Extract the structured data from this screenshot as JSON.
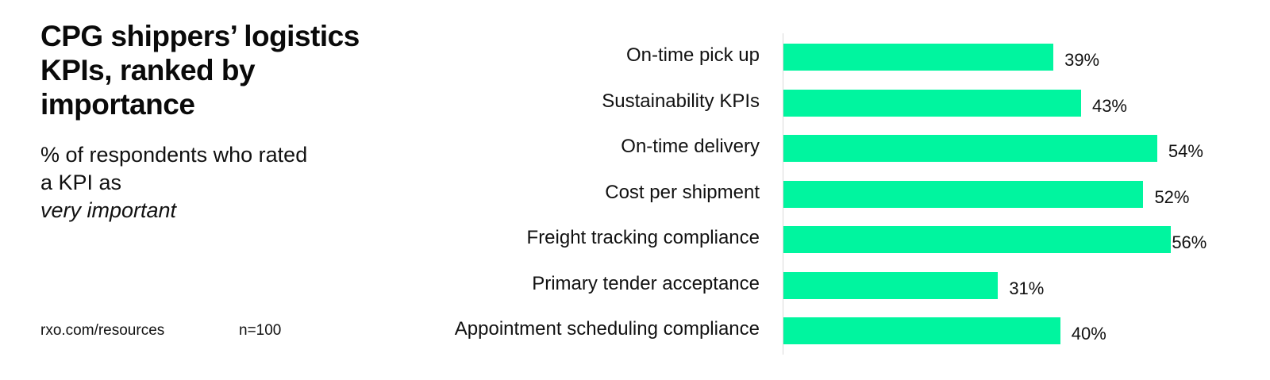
{
  "header": {
    "title": "CPG shippers’ logistics KPIs, ranked by importance",
    "subtitle_prefix": "% of respondents who rated a KPI as",
    "subtitle_emphasis": "very important"
  },
  "footer": {
    "source": "rxo.com/resources",
    "sample_size": "n=100"
  },
  "colors": {
    "bar": "#00f59f",
    "axis": "#d9d9d9",
    "text": "#111111"
  },
  "chart_data": {
    "type": "bar",
    "orientation": "horizontal",
    "title": "CPG shippers’ logistics KPIs, ranked by importance",
    "subtitle": "% of respondents who rated a KPI as very important",
    "categories": [
      "On-time pick up",
      "Sustainability KPIs",
      "On-time delivery",
      "Cost per shipment",
      "Freight tracking compliance",
      "Primary tender acceptance",
      "Appointment scheduling compliance"
    ],
    "values": [
      39,
      43,
      54,
      52,
      56,
      31,
      40
    ],
    "value_labels": [
      "39%",
      "43%",
      "54%",
      "52%",
      "56%",
      "31%",
      "40%"
    ],
    "unit": "%",
    "xlabel": "",
    "ylabel": "",
    "xlim": [
      0,
      100
    ],
    "grid": false,
    "legend": null,
    "data_labels": true,
    "annotations": [
      "n=100",
      "rxo.com/resources"
    ]
  }
}
